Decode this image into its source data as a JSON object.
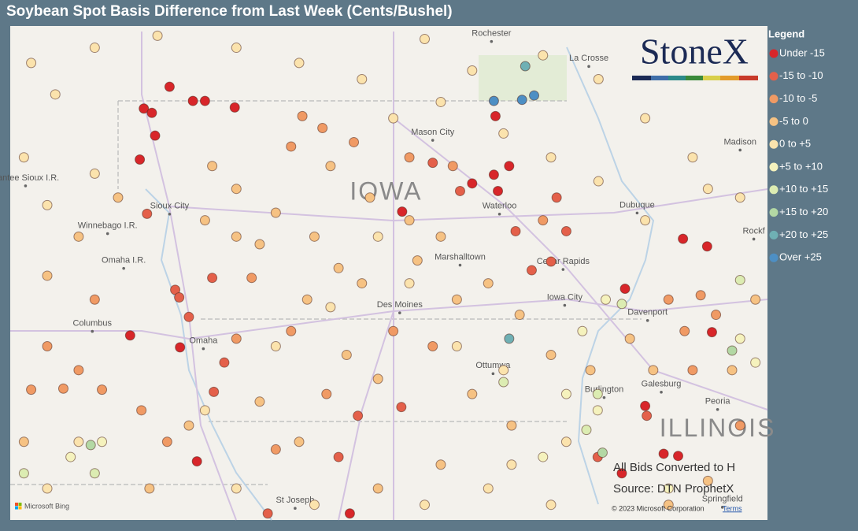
{
  "chart_data": {
    "type": "map",
    "title": "Soybean Spot Basis Difference from Last Week (Cents/Bushel)",
    "xlim": [
      -98.38,
      -88.97
    ],
    "ylim": [
      39.61,
      44.16
    ],
    "legend_title": "Legend",
    "legend_position": "right",
    "series": [
      {
        "name": "Under -15",
        "color": "#d8262a",
        "x": [
          -96.72,
          -96.62,
          -96.4,
          -96.11,
          -95.96,
          -95.59,
          -96.58,
          -96.77,
          -92.64,
          -92.32,
          -93.51,
          -92.18,
          -92.37,
          -92.35,
          -90.02,
          -89.72,
          -90.74,
          -89.66,
          -90.26,
          -90.08,
          -90.78,
          -94.16,
          -96.06,
          -96.89,
          -96.27,
          -90.49
        ],
        "y": [
          43.4,
          43.36,
          43.6,
          43.47,
          43.47,
          43.41,
          43.15,
          42.93,
          42.71,
          42.64,
          42.45,
          42.87,
          42.79,
          43.33,
          42.2,
          42.13,
          41.74,
          41.34,
          40.22,
          40.2,
          40.04,
          39.67,
          40.15,
          41.31,
          41.2,
          40.66
        ]
      },
      {
        "name": "-15 to -10",
        "color": "#e4604a",
        "x": [
          -96.68,
          -96.33,
          -95.87,
          -95.72,
          -95.85,
          -95.18,
          -94.06,
          -93.52,
          -91.9,
          -91.66,
          -91.47,
          -91.59,
          -92.1,
          -92.79,
          -93.13,
          -90.47,
          -91.08,
          -96.28,
          -94.3,
          -96.16
        ],
        "y": [
          42.43,
          41.73,
          41.84,
          41.06,
          40.79,
          39.67,
          40.57,
          40.65,
          41.91,
          41.99,
          42.27,
          42.58,
          42.27,
          42.64,
          42.9,
          40.57,
          40.19,
          41.66,
          40.19,
          41.48
        ]
      },
      {
        "name": "-10 to -5",
        "color": "#f09a64",
        "x": [
          -95.38,
          -94.89,
          -94.5,
          -94.75,
          -94.11,
          -93.42,
          -92.88,
          -97.92,
          -97.72,
          -97.53,
          -97.24,
          -96.75,
          -96.43,
          -95.08,
          -94.89,
          -93.62,
          -93.13,
          -91.76,
          -90.0,
          -89.9,
          -89.61,
          -89.31,
          -90.2,
          -89.8,
          -97.33,
          -98.12,
          -95.57,
          -94.45
        ],
        "y": [
          41.84,
          43.05,
          43.22,
          43.33,
          43.09,
          42.95,
          42.87,
          41.21,
          40.82,
          40.99,
          40.81,
          40.62,
          40.33,
          40.26,
          41.35,
          41.35,
          41.21,
          42.37,
          41.35,
          40.99,
          41.5,
          40.48,
          41.64,
          41.68,
          41.64,
          40.81,
          41.28,
          40.77
        ]
      },
      {
        "name": "-5 to 0",
        "color": "#f6c283",
        "x": [
          -95.87,
          -95.57,
          -95.08,
          -94.6,
          -94.3,
          -94.01,
          -95.28,
          -94.69,
          -94.2,
          -93.81,
          -93.32,
          -93.03,
          -92.83,
          -92.44,
          -92.05,
          -93.42,
          -93.91,
          -94.4,
          -95.57,
          -95.96,
          -91.66,
          -91.17,
          -90.68,
          -90.39,
          -92.64,
          -92.15,
          -93.03,
          -93.81,
          -94.79,
          -95.28,
          -97.04,
          -97.53,
          -97.92,
          -98.21,
          -96.65,
          -96.16,
          -90.2,
          -89.71,
          -89.41,
          -89.12
        ],
        "y": [
          42.87,
          42.66,
          42.44,
          42.22,
          41.93,
          41.79,
          42.15,
          41.64,
          41.13,
          40.91,
          42.0,
          42.22,
          41.64,
          41.79,
          41.5,
          42.37,
          42.58,
          42.87,
          42.22,
          42.37,
          41.13,
          40.99,
          41.28,
          40.99,
          40.77,
          40.48,
          40.12,
          39.9,
          40.33,
          40.7,
          42.58,
          42.22,
          41.86,
          40.33,
          39.9,
          40.48,
          39.75,
          39.97,
          40.99,
          41.64
        ]
      },
      {
        "name": "0 to +5",
        "color": "#fbe3ad",
        "x": [
          -98.12,
          -97.82,
          -97.33,
          -96.55,
          -95.57,
          -94.79,
          -94.01,
          -93.23,
          -92.64,
          -91.76,
          -91.07,
          -90.49,
          -89.9,
          -89.31,
          -98.21,
          -97.92,
          -97.33,
          -93.62,
          -93.03,
          -92.25,
          -91.66,
          -91.07,
          -90.49,
          -89.71,
          -93.81,
          -93.42,
          -92.83,
          -92.25,
          -94.4,
          -95.08,
          -95.96,
          -97.53,
          -97.92,
          -95.57,
          -94.6,
          -93.23,
          -92.44,
          -91.66,
          -91.47,
          -92.15
        ],
        "y": [
          43.82,
          43.53,
          43.96,
          44.07,
          43.96,
          43.82,
          43.67,
          44.04,
          43.75,
          43.89,
          43.67,
          43.31,
          42.95,
          42.58,
          42.95,
          42.51,
          42.8,
          43.31,
          43.46,
          43.17,
          42.95,
          42.73,
          42.37,
          42.66,
          42.22,
          41.79,
          41.21,
          40.99,
          41.57,
          41.21,
          40.62,
          40.33,
          39.9,
          39.9,
          39.75,
          39.75,
          39.9,
          39.75,
          40.33,
          40.12
        ]
      },
      {
        "name": "+5 to +10",
        "color": "#f5f2bd",
        "x": [
          -90.98,
          -91.27,
          -91.47,
          -91.08,
          -89.31,
          -89.12,
          -97.24,
          -97.63,
          -91.76,
          -90.2
        ],
        "y": [
          41.64,
          41.35,
          40.77,
          40.62,
          41.28,
          41.06,
          40.33,
          40.19,
          40.19,
          39.9
        ]
      },
      {
        "name": "+10 to +15",
        "color": "#dcecb2",
        "x": [
          -90.78,
          -89.31,
          -92.25,
          -91.22,
          -97.33,
          -98.21,
          -91.08
        ],
        "y": [
          41.6,
          41.82,
          40.88,
          40.44,
          40.04,
          40.04,
          40.77
        ]
      },
      {
        "name": "+15 to +20",
        "color": "#b3d8a4",
        "x": [
          -97.38,
          -91.02,
          -89.41
        ],
        "y": [
          40.3,
          40.23,
          41.17
        ]
      },
      {
        "name": "+20 to +25",
        "color": "#6fb0b4",
        "x": [
          -91.98,
          -92.18
        ],
        "y": [
          43.79,
          41.28
        ]
      },
      {
        "name": "Over +25",
        "color": "#4d8fc4",
        "x": [
          -92.37,
          -92.02,
          -91.87
        ],
        "y": [
          43.47,
          43.48,
          43.52
        ]
      }
    ],
    "places": [
      {
        "name": "Rochester",
        "lon": -92.4,
        "lat": 44.09
      },
      {
        "name": "La Crosse",
        "lon": -91.19,
        "lat": 43.86
      },
      {
        "name": "Mason City",
        "lon": -93.13,
        "lat": 43.18
      },
      {
        "name": "Sioux City",
        "lon": -96.4,
        "lat": 42.5
      },
      {
        "name": "Waterloo",
        "lon": -92.3,
        "lat": 42.5
      },
      {
        "name": "Dubuque",
        "lon": -90.59,
        "lat": 42.51
      },
      {
        "name": "Marshalltown",
        "lon": -92.79,
        "lat": 42.03
      },
      {
        "name": "Cedar Rapids",
        "lon": -91.51,
        "lat": 41.99
      },
      {
        "name": "Iowa City",
        "lon": -91.49,
        "lat": 41.66
      },
      {
        "name": "Des Moines",
        "lon": -93.54,
        "lat": 41.59
      },
      {
        "name": "Davenport",
        "lon": -90.46,
        "lat": 41.52
      },
      {
        "name": "Columbus",
        "lon": -97.36,
        "lat": 41.42
      },
      {
        "name": "Omaha",
        "lon": -95.98,
        "lat": 41.26
      },
      {
        "name": "Ottumwa",
        "lon": -92.38,
        "lat": 41.03
      },
      {
        "name": "Burlington",
        "lon": -91.0,
        "lat": 40.81
      },
      {
        "name": "Galesburg",
        "lon": -90.29,
        "lat": 40.86
      },
      {
        "name": "Peoria",
        "lon": -89.59,
        "lat": 40.7
      },
      {
        "name": "St Joseph",
        "lon": -94.84,
        "lat": 39.79
      },
      {
        "name": "Springfield",
        "lon": -89.53,
        "lat": 39.8
      },
      {
        "name": "Madison",
        "lon": -89.31,
        "lat": 43.09
      },
      {
        "name": "Rockf",
        "lon": -89.14,
        "lat": 42.27
      },
      {
        "name": "Winnebago I.R.",
        "lon": -97.17,
        "lat": 42.32
      },
      {
        "name": "Omaha I.R.",
        "lon": -96.97,
        "lat": 42.0
      },
      {
        "name": "Santee Sioux I.R.",
        "lon": -98.19,
        "lat": 42.76
      }
    ],
    "regions": [
      {
        "name": "IOWA",
        "lon": -93.71,
        "lat": 42.62
      },
      {
        "name": "ILLINOIS",
        "lon": -89.59,
        "lat": 40.44
      }
    ],
    "annotations": [
      "All Bids Converted to H",
      "Source: DTN ProphetX"
    ]
  },
  "logo": "StoneX",
  "attribution": {
    "provider": "Microsoft Bing",
    "copyright": "© 2023 Microsoft Corporation",
    "terms": "Terms"
  }
}
